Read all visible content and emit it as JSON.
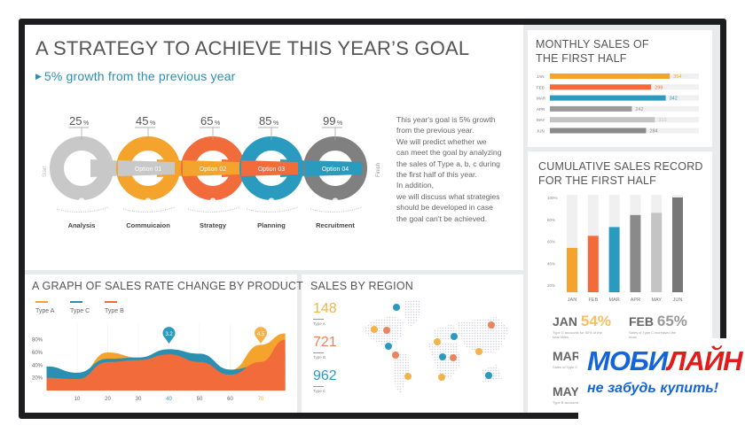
{
  "header": {
    "title": "A STRATEGY TO ACHIEVE THIS YEAR’S GOAL",
    "subtitle": "5% growth from the previous year"
  },
  "process": {
    "start_label": "Start",
    "finish_label": "Finish",
    "steps": [
      {
        "percent": "25",
        "unit": "%",
        "name": "Analysis",
        "option": "",
        "color": "#c8c8c8",
        "icon": "money-bag-icon"
      },
      {
        "percent": "45",
        "unit": "%",
        "name": "Commuicaion",
        "option": "Option 01",
        "color": "#f4a32c",
        "icon": "person-icon"
      },
      {
        "percent": "65",
        "unit": "%",
        "name": "Strategy",
        "option": "Option 02",
        "color": "#f26b3a",
        "icon": "clock-icon"
      },
      {
        "percent": "85",
        "unit": "%",
        "name": "Planning",
        "option": "Option 03",
        "color": "#2a9bbf",
        "icon": "calendar-icon"
      },
      {
        "percent": "99",
        "unit": "%",
        "name": "Recruitment",
        "option": "Option 04",
        "color": "#808080",
        "icon": "lightbulb-icon"
      }
    ]
  },
  "description": [
    "This year's goal is 5% growth",
    "from the previous year.",
    "We will predict whether we",
    "can meet the goal by analyzing",
    "the sales of Type a, b, c during",
    "the first half of this year.",
    "In addition,",
    "we will discuss what strategies",
    "should be developed in case",
    "the goal can't be achieved."
  ],
  "region": {
    "title": "SALES BY REGION",
    "stats": [
      {
        "value": "148",
        "label": "Type A",
        "color": "#f4b24a"
      },
      {
        "value": "721",
        "label": "Type B",
        "color": "#e9845f"
      },
      {
        "value": "962",
        "label": "Type C",
        "color": "#2a9bbf"
      }
    ]
  },
  "cumulative_notes": [
    {
      "month": "JAN",
      "value": "54%",
      "color": "#f4c063",
      "text": "Type C accounts for 50% of the total sales"
    },
    {
      "month": "FEB",
      "value": "65%",
      "color": "#999999",
      "text": "Sales of Type C increased the most"
    },
    {
      "month": "MAR",
      "value": "",
      "color": "#999999",
      "text": "Sales of Type C"
    },
    {
      "month": "MAY",
      "value": "",
      "color": "#999999",
      "text": "Type B accounts of the total sales"
    }
  ],
  "watermark": {
    "brand_a": "МОБИ",
    "brand_b": "ЛАЙН",
    "tagline": "не забудь купить!"
  },
  "chart_data": [
    {
      "type": "bar",
      "orientation": "horizontal",
      "title": "MONTHLY SALES OF THE FIRST HALF",
      "categories": [
        "JAN",
        "FEB",
        "MAR",
        "APR",
        "MAY",
        "JUN"
      ],
      "values": [
        354,
        299,
        342,
        242,
        310,
        284
      ],
      "colors": [
        "#f4a32c",
        "#f26b3a",
        "#2a9bbf",
        "#9a9a9a",
        "#c4c4c4",
        "#8a8a8a"
      ],
      "xlim": [
        0,
        440
      ]
    },
    {
      "type": "bar",
      "title": "CUMULATIVE SALES RECORD FOR THE FIRST HALF",
      "categories": [
        "JAN",
        "FEB",
        "MAR",
        "APR",
        "MAY",
        "JUN"
      ],
      "values": [
        54,
        65,
        73,
        84,
        86,
        100
      ],
      "yticks": [
        "20%",
        "40%",
        "60%",
        "80%",
        "100%"
      ],
      "ylim": [
        20,
        100
      ],
      "colors": [
        "#f4a32c",
        "#f26b3a",
        "#2a9bbf",
        "#8a8a8a",
        "#c4c4c4",
        "#777777"
      ]
    },
    {
      "type": "area",
      "title": "A GRAPH OF SALES RATE CHANGE BY PRODUCT",
      "x": [
        0,
        10,
        20,
        30,
        40,
        50,
        60,
        70,
        78
      ],
      "xticks": [
        "10",
        "20",
        "30",
        "40",
        "50",
        "60",
        "70"
      ],
      "yticks": [
        "20%",
        "40%",
        "60%",
        "80%"
      ],
      "ylim": [
        0,
        100
      ],
      "series": [
        {
          "name": "Type A",
          "color": "#f4a32c",
          "values": [
            20,
            22,
            60,
            52,
            55,
            42,
            32,
            72,
            90
          ]
        },
        {
          "name": "Type C",
          "color": "#2a8fb0",
          "values": [
            38,
            28,
            50,
            52,
            65,
            58,
            33,
            40,
            60
          ]
        },
        {
          "name": "Type B",
          "color": "#f26b3a",
          "values": [
            20,
            18,
            45,
            48,
            57,
            45,
            25,
            45,
            80
          ]
        }
      ],
      "annotations": [
        {
          "x": 40,
          "label": "3.2",
          "color": "#2a9bbf"
        },
        {
          "x": 70,
          "label": "4.5",
          "color": "#f4b24a"
        }
      ]
    }
  ]
}
